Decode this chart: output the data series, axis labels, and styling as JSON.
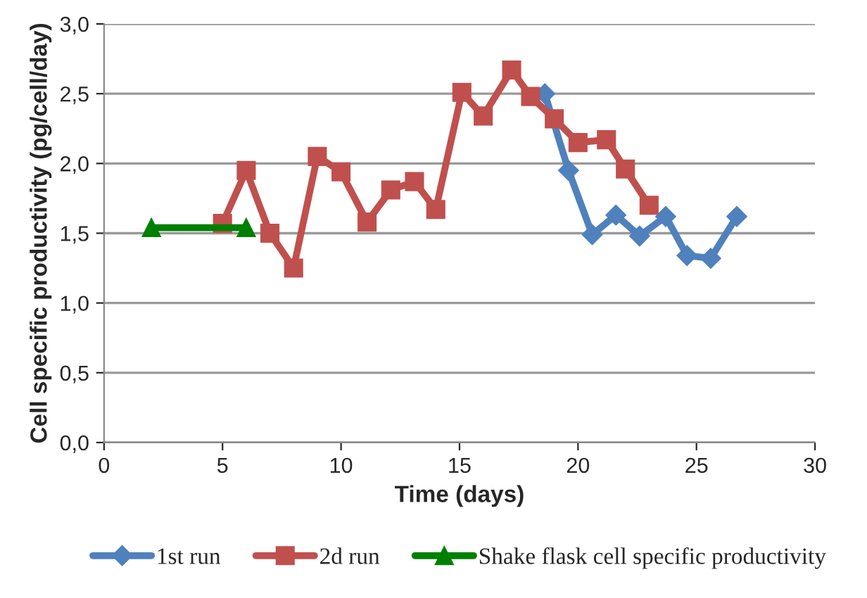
{
  "chart_data": {
    "type": "line",
    "xlabel": "Time (days)",
    "ylabel": "Cell specific productivity (pg/cell/day)",
    "xlim": [
      0,
      30
    ],
    "xticks": [
      0,
      5,
      10,
      15,
      20,
      25,
      30
    ],
    "ylim": [
      0,
      3
    ],
    "yticks": [
      {
        "value": 0,
        "label": "0,0"
      },
      {
        "value": 0.5,
        "label": "0,5"
      },
      {
        "value": 1,
        "label": "1,0"
      },
      {
        "value": 1.5,
        "label": "1,5"
      },
      {
        "value": 2,
        "label": "2,0"
      },
      {
        "value": 2.5,
        "label": "2,5"
      },
      {
        "value": 3,
        "label": "3,0"
      }
    ],
    "grid": "y",
    "legend": "bottom",
    "line_style": "solid",
    "series": [
      {
        "name": "1st run",
        "color": "#4f81bd",
        "marker": "diamond",
        "x": [
          18.6,
          19.6,
          20.6,
          21.6,
          22.6,
          23.7,
          24.6,
          25.6,
          26.7
        ],
        "values": [
          2.5,
          1.95,
          1.49,
          1.63,
          1.48,
          1.62,
          1.34,
          1.32,
          1.62
        ]
      },
      {
        "name": "2d run",
        "color": "#c0504d",
        "marker": "square",
        "x": [
          5,
          6,
          7,
          8,
          9,
          10,
          11.1,
          12.1,
          13.1,
          14,
          15.1,
          16,
          17.2,
          18,
          19,
          20,
          21.2,
          22,
          23
        ],
        "values": [
          1.57,
          1.95,
          1.5,
          1.25,
          2.05,
          1.94,
          1.58,
          1.81,
          1.87,
          1.67,
          2.51,
          2.34,
          2.67,
          2.48,
          2.32,
          2.15,
          2.17,
          1.96,
          1.7
        ]
      },
      {
        "name": "Shake flask cell specific productivity",
        "color": "#008000",
        "marker": "triangle",
        "x": [
          2,
          6
        ],
        "values": [
          1.54,
          1.54
        ]
      }
    ]
  }
}
